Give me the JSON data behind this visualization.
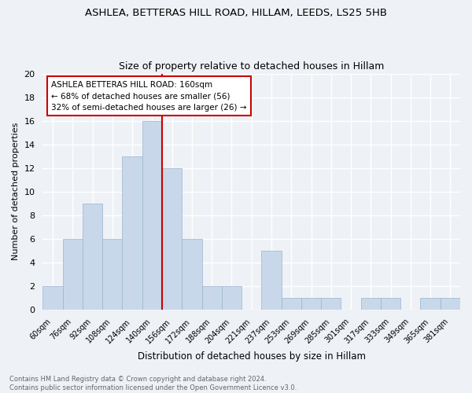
{
  "title1": "ASHLEA, BETTERAS HILL ROAD, HILLAM, LEEDS, LS25 5HB",
  "title2": "Size of property relative to detached houses in Hillam",
  "xlabel": "Distribution of detached houses by size in Hillam",
  "ylabel": "Number of detached properties",
  "categories": [
    "60sqm",
    "76sqm",
    "92sqm",
    "108sqm",
    "124sqm",
    "140sqm",
    "156sqm",
    "172sqm",
    "188sqm",
    "204sqm",
    "221sqm",
    "237sqm",
    "253sqm",
    "269sqm",
    "285sqm",
    "301sqm",
    "317sqm",
    "333sqm",
    "349sqm",
    "365sqm",
    "381sqm"
  ],
  "values": [
    2,
    6,
    9,
    6,
    13,
    16,
    12,
    6,
    2,
    2,
    0,
    5,
    1,
    1,
    1,
    0,
    1,
    1,
    0,
    1,
    1
  ],
  "bar_color": "#c8d8ea",
  "bar_edge_color": "#9ab4cc",
  "vline_color": "#cc0000",
  "annotation_title": "ASHLEA BETTERAS HILL ROAD: 160sqm",
  "annotation_line1": "← 68% of detached houses are smaller (56)",
  "annotation_line2": "32% of semi-detached houses are larger (26) →",
  "annotation_box_color": "#ffffff",
  "annotation_box_edge": "#cc0000",
  "ylim": [
    0,
    20
  ],
  "yticks": [
    0,
    2,
    4,
    6,
    8,
    10,
    12,
    14,
    16,
    18,
    20
  ],
  "footer1": "Contains HM Land Registry data © Crown copyright and database right 2024.",
  "footer2": "Contains public sector information licensed under the Open Government Licence v3.0.",
  "bg_color": "#eef2f7",
  "grid_color": "#ffffff"
}
